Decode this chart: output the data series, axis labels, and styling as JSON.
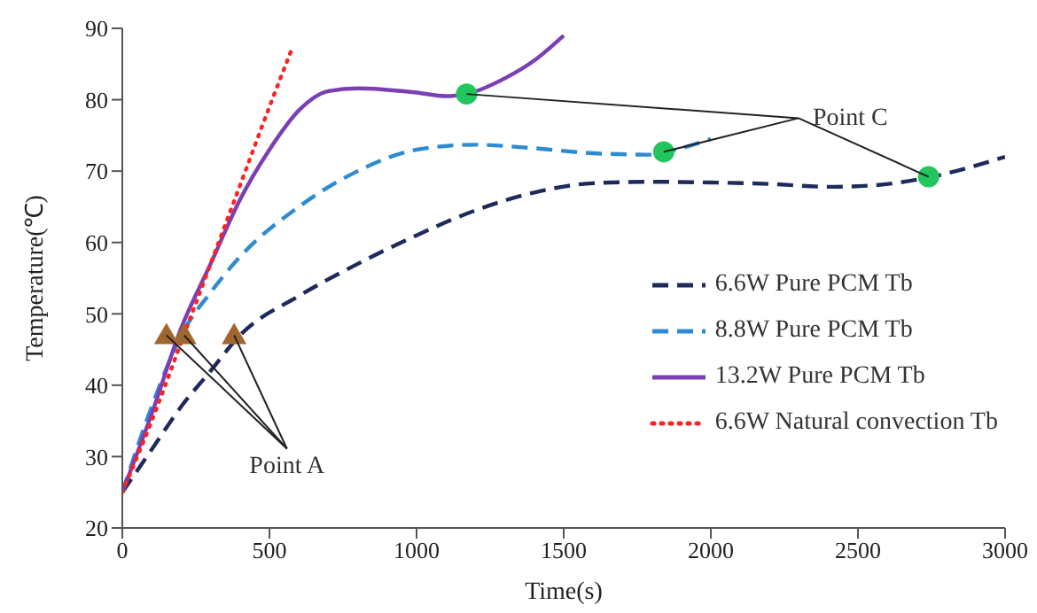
{
  "chart_data": {
    "type": "line",
    "xlabel": "Time(s)",
    "ylabel": "Temperature(℃)",
    "xlim": [
      0,
      3000
    ],
    "xticks": [
      0,
      500,
      1000,
      1500,
      2000,
      2500,
      3000
    ],
    "ylim": [
      20,
      90
    ],
    "yticks": [
      20,
      30,
      40,
      50,
      60,
      70,
      80,
      90
    ],
    "grid": false,
    "legend": "right",
    "marker": "none",
    "series": [
      {
        "name": "6.6W Pure PCM Tb",
        "color": "#1f2a5c",
        "line_style": "dashed",
        "x": [
          0,
          100,
          200,
          300,
          400,
          600,
          800,
          1000,
          1200,
          1400,
          1600,
          1800,
          2000,
          2200,
          2400,
          2550,
          2750,
          3000
        ],
        "values": [
          25,
          31,
          37,
          42,
          47,
          52.5,
          57,
          61,
          64.5,
          67,
          68.3,
          68.5,
          68.4,
          68.2,
          67.8,
          68,
          69.2,
          72
        ]
      },
      {
        "name": "8.8W Pure PCM Tb",
        "color": "#2e8bd1",
        "line_style": "dashed",
        "x": [
          0,
          100,
          200,
          300,
          400,
          600,
          800,
          1000,
          1200,
          1400,
          1600,
          1800,
          1850,
          2000
        ],
        "values": [
          25,
          37,
          47,
          53,
          58,
          65,
          70,
          73,
          73.7,
          73.2,
          72.5,
          72.3,
          72.7,
          74.5
        ]
      },
      {
        "name": "13.2W Pure PCM Tb",
        "color": "#7b3fb4",
        "line_style": "solid",
        "x": [
          0,
          100,
          200,
          300,
          400,
          500,
          600,
          700,
          800,
          1000,
          1100,
          1170,
          1300,
          1400,
          1500
        ],
        "values": [
          25,
          36,
          48,
          57,
          66,
          73,
          78.5,
          81.2,
          81.6,
          81,
          80.5,
          80.8,
          83,
          85.5,
          89
        ]
      },
      {
        "name": "6.6W Natural convection Tb",
        "color": "#ff2020",
        "line_style": "dotted",
        "x": [
          0,
          100,
          200,
          300,
          400,
          500,
          580
        ],
        "values": [
          25,
          35,
          46,
          57,
          68,
          79,
          87.5
        ]
      },
      {
        "type": "scatter",
        "marker": "triangle",
        "color": "#a0662e",
        "x": [
          150,
          210,
          380
        ],
        "values": [
          47,
          47,
          47
        ]
      },
      {
        "type": "scatter",
        "marker": "circle",
        "color": "#22c55e",
        "x": [
          1170,
          1840,
          2740
        ],
        "values": [
          80.8,
          72.7,
          69.2
        ]
      }
    ],
    "annotations": [
      {
        "text": "Point A",
        "x": 210,
        "y": 47
      },
      {
        "text": "Point C",
        "x": 1840,
        "y": 72.7
      }
    ]
  }
}
